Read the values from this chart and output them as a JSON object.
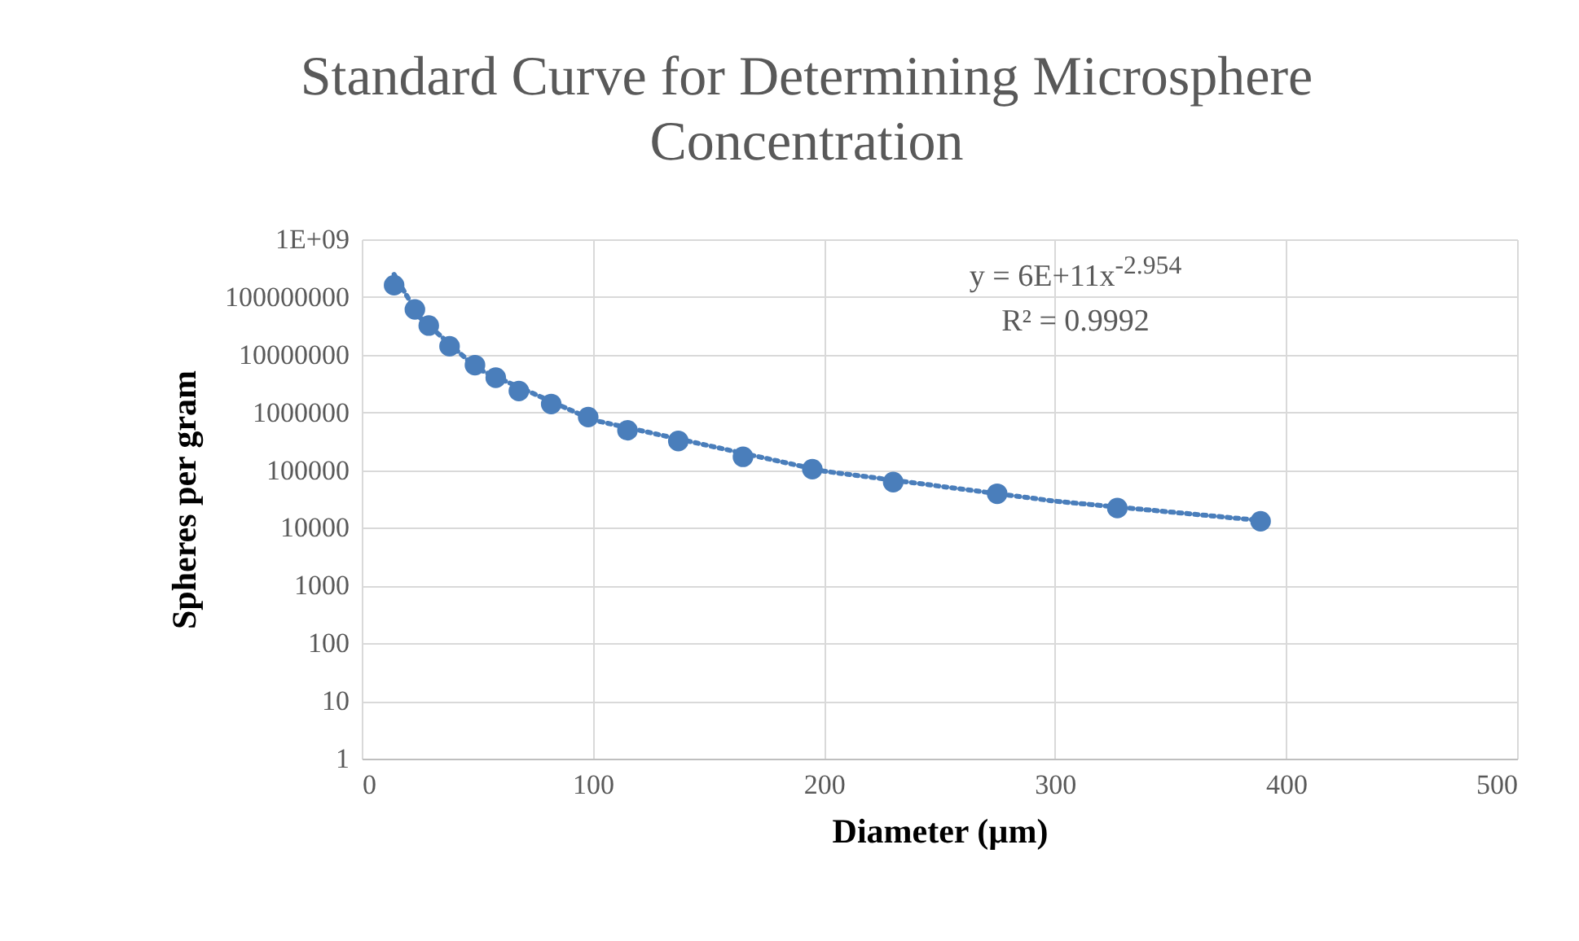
{
  "chart_data": {
    "type": "scatter",
    "title": "Standard Curve for Determining Microsphere Concentration",
    "xlabel": "Diameter (µm)",
    "ylabel": "Spheres per gram",
    "log": "y",
    "grid": true,
    "marker": "circle",
    "xlim": [
      0,
      500
    ],
    "xticks": [
      0,
      100,
      200,
      300,
      400,
      500
    ],
    "ylim": [
      1,
      1000000000
    ],
    "yticks": [
      1,
      10,
      100,
      1000,
      10000,
      100000,
      1000000,
      10000000,
      100000000,
      {
        "value": 1000000000,
        "label": "1E+09"
      }
    ],
    "annotations": [
      "y = 6E+11x$^{-2.954}$",
      "R² = 0.9992"
    ],
    "series": [
      {
        "color": "#4a7ebb",
        "x": [
          14,
          23,
          29,
          38,
          49,
          58,
          68,
          82,
          98,
          115,
          137,
          165,
          195,
          230,
          275,
          327,
          389
        ],
        "values": [
          160000000,
          61000000,
          32000000,
          14000000,
          6600000,
          4000000,
          2350000,
          1400000,
          830000,
          490000,
          320000,
          170000,
          104000,
          62000,
          39000,
          22000,
          13000
        ]
      },
      {
        "type": "line",
        "marker": "none",
        "line_style": "dotted",
        "color": "#4a7ebb",
        "x": [
          14,
          25,
          50,
          100,
          200,
          300,
          390
        ],
        "values": [
          247000000,
          44600000,
          5760000,
          740000,
          96000,
          29000,
          13300
        ]
      }
    ]
  }
}
